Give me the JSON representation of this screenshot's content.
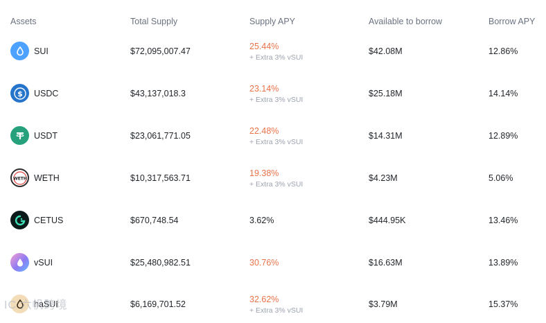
{
  "columns": {
    "asset": "Assets",
    "total_supply": "Total Supply",
    "supply_apy": "Supply APY",
    "available": "Available to borrow",
    "borrow_apy": "Borrow APY"
  },
  "rows": [
    {
      "asset": "SUI",
      "icon": "sui-icon",
      "total_supply": "$72,095,007.47",
      "supply_apy": "25.44%",
      "extra": "+ Extra 3% vSUI",
      "available": "$42.08M",
      "borrow_apy": "12.86%"
    },
    {
      "asset": "USDC",
      "icon": "usdc-icon",
      "total_supply": "$43,137,018.3",
      "supply_apy": "23.14%",
      "extra": "+ Extra 3% vSUI",
      "available": "$25.18M",
      "borrow_apy": "14.14%"
    },
    {
      "asset": "USDT",
      "icon": "usdt-icon",
      "total_supply": "$23,061,771.05",
      "supply_apy": "22.48%",
      "extra": "+ Extra 3% vSUI",
      "available": "$14.31M",
      "borrow_apy": "12.89%"
    },
    {
      "asset": "WETH",
      "icon": "weth-icon",
      "total_supply": "$10,317,563.71",
      "supply_apy": "19.38%",
      "extra": "+ Extra 3% vSUI",
      "available": "$4.23M",
      "borrow_apy": "5.06%"
    },
    {
      "asset": "CETUS",
      "icon": "cetus-icon",
      "total_supply": "$670,748.54",
      "supply_apy": "3.62%",
      "extra": "",
      "available": "$444.95K",
      "borrow_apy": "13.46%"
    },
    {
      "asset": "vSUI",
      "icon": "vsui-icon",
      "total_supply": "$25,480,982.51",
      "supply_apy": "30.76%",
      "extra": "",
      "available": "$16.63M",
      "borrow_apy": "13.89%"
    },
    {
      "asset": "haSUI",
      "icon": "hasui-icon",
      "total_supply": "$6,169,701.52",
      "supply_apy": "32.62%",
      "extra": "+ Extra 3% vSUI",
      "available": "$3.79M",
      "borrow_apy": "15.37%"
    }
  ],
  "watermark": "IC 六帆跨境",
  "colors": {
    "accent_apy": "#e8734a",
    "muted": "#9ca3af"
  }
}
